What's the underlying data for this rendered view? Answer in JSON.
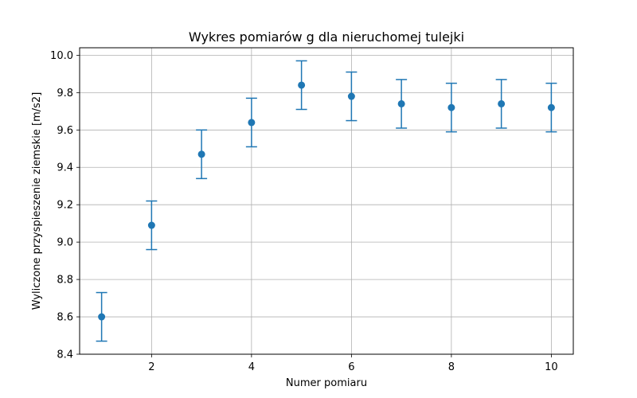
{
  "chart_data": {
    "type": "scatter",
    "title": "Wykres pomiarów g dla nieruchomej tulejki",
    "xlabel": "Numer pomiaru",
    "ylabel": "Wyliczone przyspieszenie ziemskie [m/s2]",
    "xlim": [
      0.56,
      10.44
    ],
    "ylim": [
      8.4,
      10.04
    ],
    "xticks": [
      2,
      4,
      6,
      8,
      10
    ],
    "xtick_labels": [
      "2",
      "4",
      "6",
      "8",
      "10"
    ],
    "yticks": [
      8.4,
      8.6,
      8.8,
      9.0,
      9.2,
      9.4,
      9.6,
      9.8,
      10.0
    ],
    "ytick_labels": [
      "8.4",
      "8.6",
      "8.8",
      "9.0",
      "9.2",
      "9.4",
      "9.6",
      "9.8",
      "10.0"
    ],
    "grid": true,
    "error_bars": true,
    "color": "#1f77b4",
    "series": [
      {
        "x": [
          1,
          2,
          3,
          4,
          5,
          6,
          7,
          8,
          9,
          10
        ],
        "y": [
          8.6,
          9.09,
          9.47,
          9.64,
          9.84,
          9.78,
          9.74,
          9.72,
          9.74,
          9.72
        ],
        "yerr": [
          0.13,
          0.13,
          0.13,
          0.13,
          0.13,
          0.13,
          0.13,
          0.13,
          0.13,
          0.13
        ]
      }
    ]
  }
}
